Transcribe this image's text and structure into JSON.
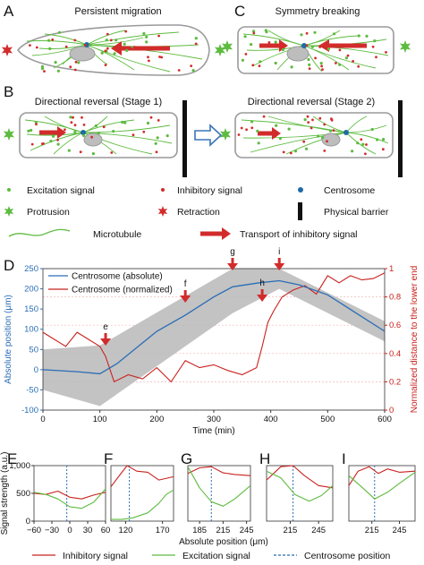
{
  "panels": {
    "A": {
      "letter": "A",
      "title": "Persistent migration"
    },
    "B": {
      "letter": "B",
      "title1": "Directional reversal (Stage 1)",
      "title2": "Directional reversal (Stage 2)"
    },
    "C": {
      "letter": "C",
      "title": "Symmetry breaking"
    },
    "D": {
      "letter": "D"
    },
    "E": {
      "letter": "E"
    },
    "F": {
      "letter": "F"
    },
    "G": {
      "letter": "G"
    },
    "H": {
      "letter": "H"
    },
    "I": {
      "letter": "I"
    }
  },
  "legend": {
    "excitation": "Excitation signal",
    "inhibitory": "Inhibitory signal",
    "centrosome": "Centrosome",
    "protrusion": "Protrusion",
    "retraction": "Retraction",
    "barrier": "Physical barrier",
    "microtubule": "Microtubule",
    "transport": "Transport of inhibitory signal"
  },
  "colors": {
    "excitation": "#5dbb3f",
    "inhibitory": "#d22b2b",
    "centrosome": "#1f6aa5",
    "blue_line": "#2a6db5",
    "red_line": "#c8221e",
    "band": "#b8b8b8",
    "open_arrow": "#3a76b8"
  },
  "chart_data": [
    {
      "type": "line",
      "xlabel": "Time (min)",
      "ylabel": "Absolute position (μm)",
      "y2label": "Normalized distance to the lower end",
      "xlim": [
        0,
        600
      ],
      "ylim": [
        -100,
        250
      ],
      "y2lim": [
        0,
        1
      ],
      "xticks": [
        "0",
        "100",
        "200",
        "300",
        "400",
        "500",
        "600"
      ],
      "yticks": [
        "-100",
        "-50",
        "0",
        "50",
        "100",
        "150",
        "200",
        "250"
      ],
      "y2ticks": [
        "0",
        "0.2",
        "0.4",
        "0.6",
        "0.8",
        "1"
      ],
      "legend_entries": [
        "Centrosome (absolute)",
        "Centrosome (normalized)"
      ],
      "annotations": [
        {
          "label": "e",
          "x": 110
        },
        {
          "label": "f",
          "x": 250
        },
        {
          "label": "g",
          "x": 333
        },
        {
          "label": "h",
          "x": 385
        },
        {
          "label": "i",
          "x": 415
        }
      ],
      "band": {
        "x": [
          0,
          100,
          333,
          415,
          600
        ],
        "upper": [
          50,
          60,
          250,
          250,
          120
        ],
        "lower": [
          -50,
          -90,
          140,
          200,
          70
        ]
      },
      "series": [
        {
          "name": "Centrosome (absolute)",
          "axis": "left",
          "x": [
            0,
            60,
            100,
            130,
            200,
            250,
            300,
            333,
            380,
            415,
            450,
            500,
            550,
            600
          ],
          "y": [
            0,
            -5,
            -10,
            15,
            95,
            135,
            180,
            205,
            215,
            220,
            210,
            185,
            140,
            95
          ]
        },
        {
          "name": "Centrosome (normalized)",
          "axis": "right",
          "x": [
            0,
            20,
            40,
            60,
            80,
            100,
            110,
            125,
            150,
            175,
            200,
            225,
            250,
            275,
            300,
            325,
            350,
            375,
            385,
            395,
            405,
            420,
            440,
            460,
            480,
            500,
            520,
            540,
            560,
            580,
            600
          ],
          "y": [
            0.55,
            0.5,
            0.45,
            0.55,
            0.5,
            0.45,
            0.38,
            0.2,
            0.25,
            0.22,
            0.3,
            0.2,
            0.35,
            0.3,
            0.32,
            0.28,
            0.25,
            0.3,
            0.45,
            0.62,
            0.7,
            0.8,
            0.85,
            0.88,
            0.82,
            0.95,
            0.9,
            0.95,
            0.92,
            0.93,
            0.97
          ]
        }
      ]
    },
    {
      "type": "line",
      "panel": "E",
      "ylabel": "Signal strength (a.u.)",
      "xticks": [
        "−60",
        "−30",
        "0",
        "30",
        "60"
      ],
      "yticks": [
        "0",
        "500",
        "1,000"
      ],
      "ylim": [
        0,
        1000
      ],
      "xlim": [
        -60,
        60
      ],
      "centrosome_x": -5,
      "series": [
        {
          "name": "Inhibitory signal",
          "x": [
            -60,
            -40,
            -20,
            0,
            20,
            40,
            60
          ],
          "y": [
            500,
            480,
            540,
            430,
            400,
            470,
            520
          ]
        },
        {
          "name": "Excitation signal",
          "x": [
            -60,
            -40,
            -20,
            0,
            20,
            40,
            60
          ],
          "y": [
            520,
            480,
            400,
            260,
            230,
            340,
            580
          ]
        }
      ]
    },
    {
      "type": "line",
      "panel": "F",
      "xticks": [
        "120",
        "170"
      ],
      "xlim": [
        100,
        185
      ],
      "ylim": [
        0,
        1000
      ],
      "centrosome_x": 125,
      "series": [
        {
          "name": "Inhibitory signal",
          "x": [
            100,
            112,
            122,
            135,
            150,
            165,
            185
          ],
          "y": [
            620,
            830,
            1000,
            900,
            880,
            740,
            800
          ]
        },
        {
          "name": "Excitation signal",
          "x": [
            100,
            115,
            130,
            150,
            165,
            175,
            185
          ],
          "y": [
            30,
            30,
            60,
            150,
            320,
            480,
            560
          ]
        }
      ]
    },
    {
      "type": "line",
      "panel": "G",
      "xticks": [
        "185",
        "215",
        "245"
      ],
      "xlim": [
        170,
        250
      ],
      "ylim": [
        0,
        1000
      ],
      "centrosome_x": 200,
      "series": [
        {
          "name": "Inhibitory signal",
          "x": [
            170,
            185,
            200,
            215,
            230,
            250
          ],
          "y": [
            860,
            960,
            980,
            870,
            840,
            820
          ]
        },
        {
          "name": "Excitation signal",
          "x": [
            170,
            185,
            200,
            215,
            230,
            250
          ],
          "y": [
            980,
            600,
            350,
            270,
            400,
            640
          ]
        }
      ]
    },
    {
      "type": "line",
      "panel": "H",
      "xticks": [
        "215",
        "245"
      ],
      "xlim": [
        190,
        260
      ],
      "ylim": [
        0,
        1000
      ],
      "centrosome_x": 218,
      "series": [
        {
          "name": "Inhibitory signal",
          "x": [
            190,
            205,
            218,
            230,
            245,
            260
          ],
          "y": [
            740,
            980,
            1000,
            820,
            640,
            600
          ]
        },
        {
          "name": "Excitation signal",
          "x": [
            190,
            205,
            220,
            235,
            248,
            260
          ],
          "y": [
            900,
            780,
            480,
            360,
            460,
            640
          ]
        }
      ]
    },
    {
      "type": "line",
      "panel": "I",
      "xticks": [
        "215",
        "245"
      ],
      "xlim": [
        190,
        262
      ],
      "ylim": [
        0,
        1000
      ],
      "centrosome_x": 218,
      "series": [
        {
          "name": "Inhibitory signal",
          "x": [
            190,
            200,
            212,
            222,
            232,
            245,
            262
          ],
          "y": [
            640,
            900,
            980,
            860,
            940,
            880,
            900
          ]
        },
        {
          "name": "Excitation signal",
          "x": [
            190,
            205,
            218,
            232,
            245,
            262
          ],
          "y": [
            820,
            600,
            400,
            520,
            680,
            880
          ]
        }
      ]
    }
  ],
  "bottom_legend": {
    "inhibitory": "Inhibitory signal",
    "excitation": "Excitation signal",
    "centrosome": "Centrosome position",
    "xlabel": "Absolute position (μm)"
  }
}
